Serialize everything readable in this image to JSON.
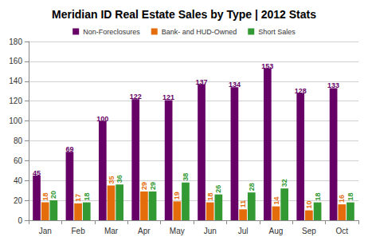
{
  "chart_data": {
    "type": "bar",
    "title": "Meridian ID Real Estate Sales by Type | 2012 Stats",
    "categories": [
      "Jan",
      "Feb",
      "Mar",
      "Apr",
      "May",
      "Jun",
      "Jul",
      "Aug",
      "Sep",
      "Oct"
    ],
    "series": [
      {
        "name": "Non-Foreclosures",
        "color": "#660066",
        "values": [
          45,
          69,
          100,
          122,
          121,
          137,
          134,
          153,
          128,
          133
        ]
      },
      {
        "name": "Bank- and HUD-Owned",
        "color": "#e46c0a",
        "values": [
          18,
          17,
          35,
          29,
          19,
          18,
          11,
          14,
          10,
          16
        ]
      },
      {
        "name": "Short Sales",
        "color": "#339933",
        "values": [
          20,
          18,
          36,
          29,
          38,
          26,
          28,
          32,
          18,
          18
        ]
      }
    ],
    "ylim": [
      0,
      180
    ],
    "yticks": [
      0,
      20,
      40,
      60,
      80,
      100,
      120,
      140,
      160,
      180
    ],
    "grid": true,
    "legend": "top",
    "data_labels": true
  }
}
